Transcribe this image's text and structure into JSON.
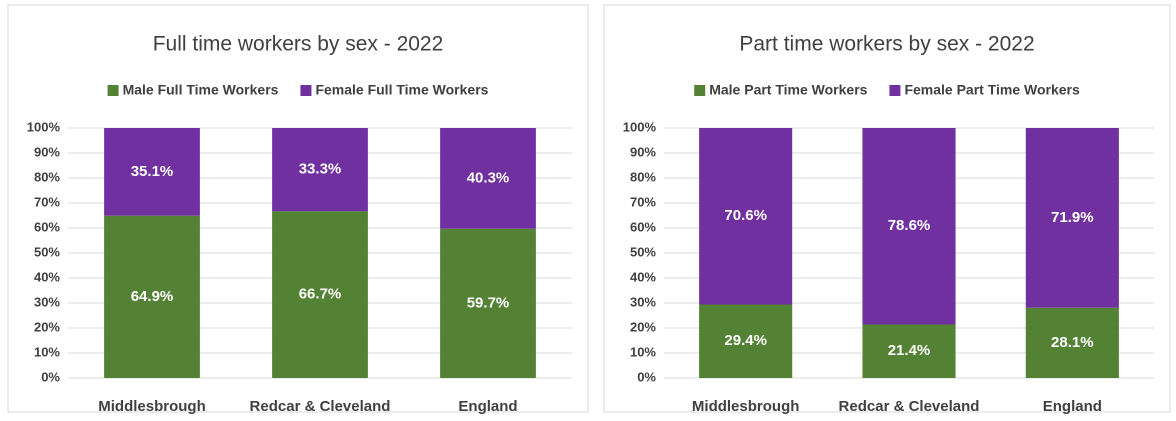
{
  "chart_data": [
    {
      "type": "stacked_bar",
      "title": "Full time workers by sex - 2022",
      "categories": [
        "Middlesbrough",
        "Redcar & Cleveland",
        "England"
      ],
      "series": [
        {
          "name": "Male Full Time Workers",
          "color": "#548235",
          "values": [
            64.9,
            66.7,
            59.7
          ],
          "value_labels": [
            "64.9%",
            "66.7%",
            "59.7%"
          ]
        },
        {
          "name": "Female Full Time Workers",
          "color": "#7030a0",
          "values": [
            35.1,
            33.3,
            40.3
          ],
          "value_labels": [
            "35.1%",
            "33.3%",
            "40.3%"
          ]
        }
      ],
      "ylim": [
        0,
        100
      ],
      "yticks": [
        {
          "value": 0,
          "label": "0%"
        },
        {
          "value": 10,
          "label": "10%"
        },
        {
          "value": 20,
          "label": "20%"
        },
        {
          "value": 30,
          "label": "30%"
        },
        {
          "value": 40,
          "label": "40%"
        },
        {
          "value": 50,
          "label": "50%"
        },
        {
          "value": 60,
          "label": "60%"
        },
        {
          "value": 70,
          "label": "70%"
        },
        {
          "value": 80,
          "label": "80%"
        },
        {
          "value": 90,
          "label": "90%"
        },
        {
          "value": 100,
          "label": "100%"
        }
      ],
      "grid": true,
      "legend": "top"
    },
    {
      "type": "stacked_bar",
      "title": "Part time workers by sex - 2022",
      "categories": [
        "Middlesbrough",
        "Redcar & Cleveland",
        "England"
      ],
      "series": [
        {
          "name": "Male Part Time Workers",
          "color": "#548235",
          "values": [
            29.4,
            21.4,
            28.1
          ],
          "value_labels": [
            "29.4%",
            "21.4%",
            "28.1%"
          ]
        },
        {
          "name": "Female Part Time Workers",
          "color": "#7030a0",
          "values": [
            70.6,
            78.6,
            71.9
          ],
          "value_labels": [
            "70.6%",
            "78.6%",
            "71.9%"
          ]
        }
      ],
      "ylim": [
        0,
        100
      ],
      "yticks": [
        {
          "value": 0,
          "label": "0%"
        },
        {
          "value": 10,
          "label": "10%"
        },
        {
          "value": 20,
          "label": "20%"
        },
        {
          "value": 30,
          "label": "30%"
        },
        {
          "value": 40,
          "label": "40%"
        },
        {
          "value": 50,
          "label": "50%"
        },
        {
          "value": 60,
          "label": "60%"
        },
        {
          "value": 70,
          "label": "70%"
        },
        {
          "value": 80,
          "label": "80%"
        },
        {
          "value": 90,
          "label": "90%"
        },
        {
          "value": 100,
          "label": "100%"
        }
      ],
      "grid": true,
      "legend": "top"
    }
  ]
}
